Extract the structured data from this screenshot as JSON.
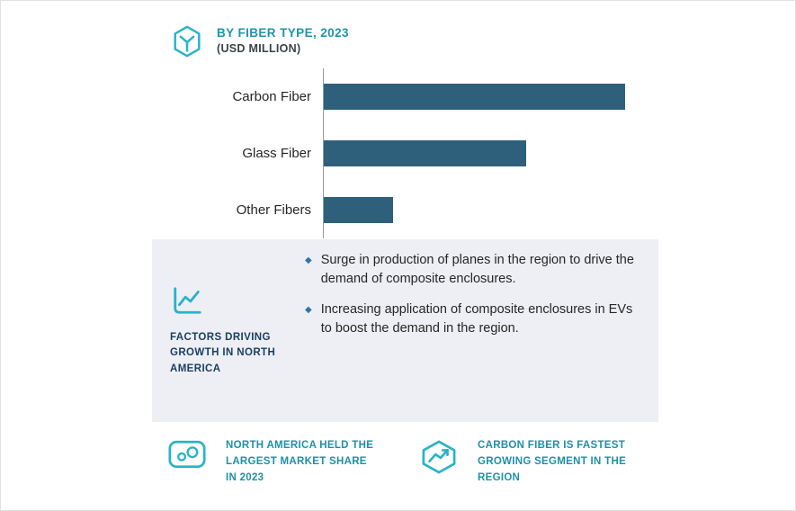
{
  "colors": {
    "accent": "#29b3c7",
    "title": "#1d95ab",
    "subtitle_text": "#3a4149",
    "bar": "#2e607c",
    "heading_navy": "#1c3e63",
    "bullet": "#2a79a8",
    "callout_text": "#1f8fa7",
    "panel_bg": "#edeff4",
    "text_dark": "#262626"
  },
  "header": {
    "icon": "fiber-hexagon-icon",
    "title": "BY FIBER TYPE, 2023",
    "subtitle": "(USD MILLION)"
  },
  "chart_data": {
    "type": "bar",
    "orientation": "horizontal",
    "title": "BY FIBER TYPE, 2023 (USD MILLION)",
    "categories": [
      "Carbon Fiber",
      "Glass Fiber",
      "Other Fibers"
    ],
    "values": [
      100,
      67,
      23
    ],
    "units": "USD Million (numeric axis values not shown; values are relative lengths, max = 100)",
    "xlim": [
      0,
      111
    ],
    "bar_color": "#2e607c",
    "gridlines": false,
    "value_labels": false,
    "legend": false
  },
  "factors": {
    "icon": "line-chart-icon",
    "heading": "FACTORS DRIVING GROWTH IN NORTH AMERICA",
    "bullets": [
      "Surge in production of planes in the region to drive the demand of composite enclosures.",
      "Increasing application of composite enclosures in EVs to boost the demand in the region."
    ]
  },
  "callouts": [
    {
      "icon": "market-share-icon",
      "text": "NORTH AMERICA HELD THE LARGEST MARKET SHARE IN 2023"
    },
    {
      "icon": "growth-trend-icon",
      "text": "CARBON FIBER IS FASTEST GROWING SEGMENT IN THE REGION"
    }
  ]
}
